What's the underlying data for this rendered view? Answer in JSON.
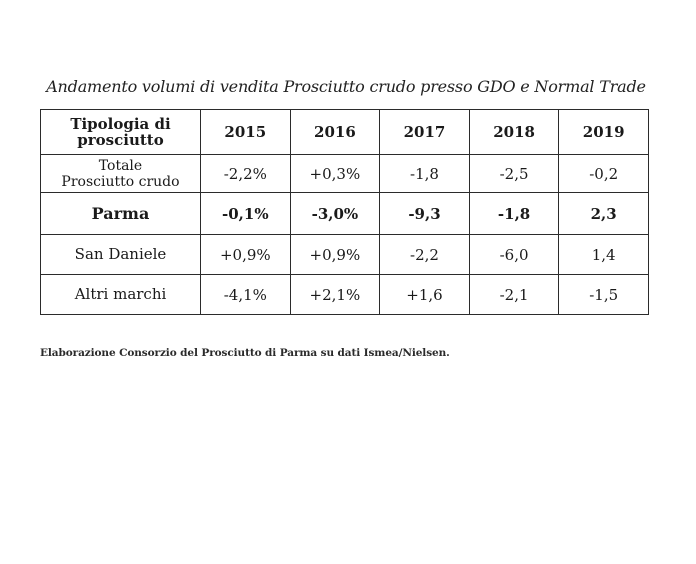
{
  "title": "Andamento volumi di vendita Prosciutto crudo presso GDO e Normal Trade",
  "table": {
    "header": {
      "type_label_line1": "Tipologia di",
      "type_label_line2": "prosciutto",
      "years": [
        "2015",
        "2016",
        "2017",
        "2018",
        "2019"
      ]
    },
    "rows": [
      {
        "label_line1": "Totale",
        "label_line2": "Prosciutto crudo",
        "values": [
          "-2,2%",
          "+0,3%",
          "-1,8",
          "-2,5",
          "-0,2"
        ],
        "bold": false
      },
      {
        "label_line1": "Parma",
        "label_line2": "",
        "values": [
          "-0,1%",
          "-3,0%",
          "-9,3",
          "-1,8",
          "2,3"
        ],
        "bold": true
      },
      {
        "label_line1": "San Daniele",
        "label_line2": "",
        "values": [
          "+0,9%",
          "+0,9%",
          "-2,2",
          "-6,0",
          "1,4"
        ],
        "bold": false
      },
      {
        "label_line1": "Altri marchi",
        "label_line2": "",
        "values": [
          "-4,1%",
          "+2,1%",
          "+1,6",
          "-2,1",
          "-1,5"
        ],
        "bold": false
      }
    ]
  },
  "note": "Elaborazione Consorzio del Prosciutto di Parma su dati Ismea/Nielsen."
}
